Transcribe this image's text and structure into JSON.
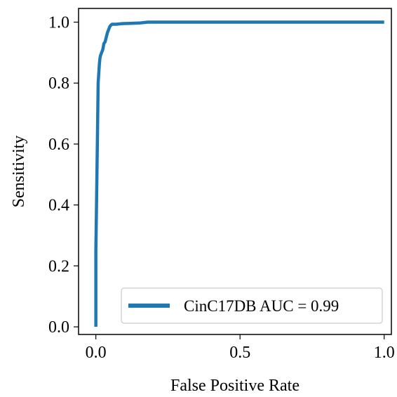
{
  "chart_data": {
    "type": "line",
    "title": "",
    "xlabel": "False Positive Rate",
    "ylabel": "Sensitivity",
    "xlim": [
      -0.06,
      1.025
    ],
    "ylim": [
      -0.025,
      1.045
    ],
    "grid": false,
    "legend_position": "lower-right",
    "xticks": [
      0.0,
      0.5,
      1.0
    ],
    "xtick_labels": [
      "0.0",
      "0.5",
      "1.0"
    ],
    "yticks": [
      0.0,
      0.2,
      0.4,
      0.6,
      0.8,
      1.0
    ],
    "ytick_labels": [
      "0.0",
      "0.2",
      "0.4",
      "0.6",
      "0.8",
      "1.0"
    ],
    "series": [
      {
        "name": "CinC17DB AUC = 0.99",
        "color": "#1f77b4",
        "x": [
          0.0,
          0.0,
          0.002,
          0.004,
          0.006,
          0.008,
          0.01,
          0.012,
          0.014,
          0.016,
          0.02,
          0.024,
          0.028,
          0.032,
          0.036,
          0.04,
          0.044,
          0.048,
          0.052,
          0.056,
          0.06,
          0.07,
          0.09,
          0.12,
          0.15,
          0.18,
          0.25,
          0.5,
          0.75,
          1.0
        ],
        "y": [
          0.0,
          0.25,
          0.38,
          0.52,
          0.66,
          0.8,
          0.83,
          0.86,
          0.88,
          0.89,
          0.9,
          0.91,
          0.93,
          0.935,
          0.95,
          0.965,
          0.975,
          0.985,
          0.99,
          0.993,
          0.993,
          0.993,
          0.995,
          0.996,
          0.997,
          1.0,
          1.0,
          1.0,
          1.0,
          1.0
        ]
      }
    ]
  }
}
